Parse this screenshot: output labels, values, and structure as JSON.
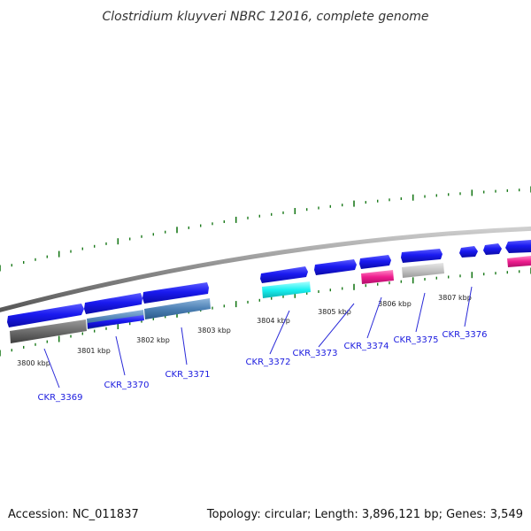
{
  "title": "Clostridium kluyveri NBRC 12016, complete genome",
  "footer": {
    "accession": "Accession: NC_011837",
    "topology": "Topology: circular; Length: 3,896,121 bp; Genes: 3,549"
  },
  "position_labels": [
    "3800 kbp",
    "3801 kbp",
    "3802 kbp",
    "3803 kbp",
    "3804 kbp",
    "3805 kbp",
    "3806 kbp",
    "3807 kbp"
  ],
  "gene_labels": [
    "CKR_3369",
    "CKR_3370",
    "CKR_3371",
    "CKR_3372",
    "CKR_3373",
    "CKR_3374",
    "CKR_3375",
    "CKR_3376"
  ],
  "colors": {
    "cds": "#1212e8",
    "backbone": "#8a8a8a",
    "tick": "#1b7a1b",
    "label": "#1a1adf",
    "track_grey": "#6e6e6e",
    "track_steel": "#4a7fb5",
    "track_cyan": "#19f0f0",
    "track_pink": "#ee1c8e",
    "track_light": "#c4c4c4"
  }
}
